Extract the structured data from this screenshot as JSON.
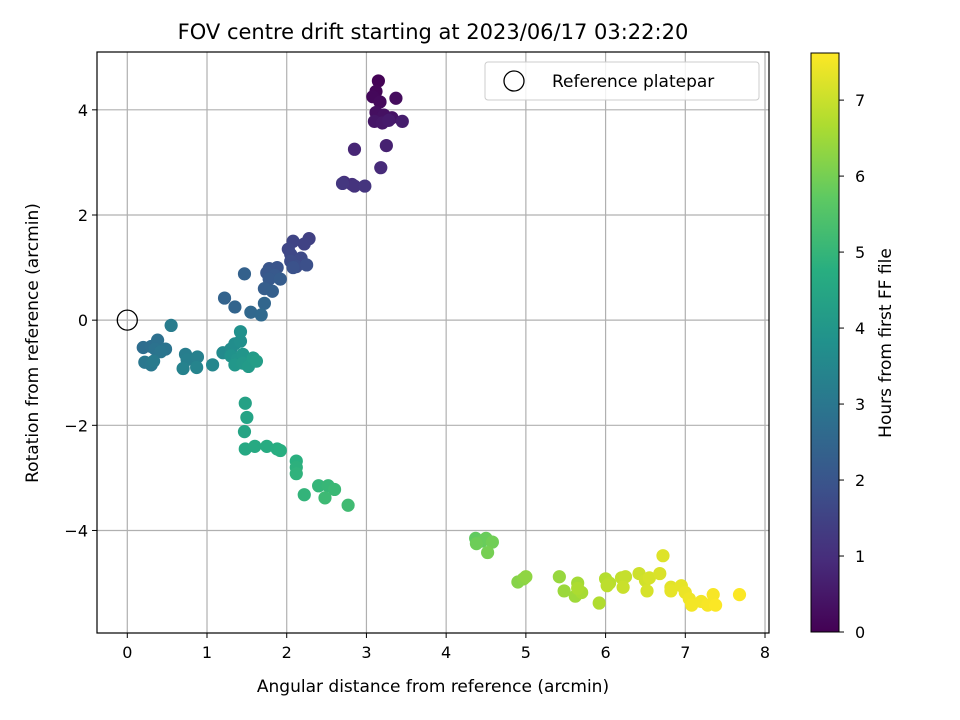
{
  "chart_data": {
    "type": "scatter",
    "title": "FOV centre drift starting at 2023/06/17 03:22:20",
    "xlabel": "Angular distance from reference (arcmin)",
    "ylabel": "Rotation from reference (arcmin)",
    "xlim": [
      -0.38,
      8.05
    ],
    "ylim": [
      -5.95,
      5.1
    ],
    "xticks": [
      0,
      1,
      2,
      3,
      4,
      5,
      6,
      7,
      8
    ],
    "yticks": [
      -4,
      -2,
      0,
      2,
      4
    ],
    "xtick_labels": [
      "0",
      "1",
      "2",
      "3",
      "4",
      "5",
      "6",
      "7",
      "8"
    ],
    "ytick_labels": [
      "−4",
      "−2",
      "0",
      "2",
      "4"
    ],
    "grid": true,
    "colormap": "viridis",
    "colorbar": {
      "label": "Hours from first FF file",
      "range": [
        0,
        7.62
      ],
      "ticks": [
        0,
        1,
        2,
        3,
        4,
        5,
        6,
        7
      ],
      "tick_labels": [
        "0",
        "1",
        "2",
        "3",
        "4",
        "5",
        "6",
        "7"
      ]
    },
    "legend": {
      "position": "top-right",
      "entries": [
        "Reference platepar"
      ]
    },
    "reference_point": {
      "x": 0,
      "y": 0,
      "label": "Reference platepar"
    },
    "points": [
      {
        "x": 3.15,
        "y": 4.55,
        "t": 0.05
      },
      {
        "x": 3.12,
        "y": 4.35,
        "t": 0.1
      },
      {
        "x": 3.08,
        "y": 4.25,
        "t": 0.15
      },
      {
        "x": 3.17,
        "y": 4.15,
        "t": 0.2
      },
      {
        "x": 3.37,
        "y": 4.22,
        "t": 0.25
      },
      {
        "x": 3.12,
        "y": 3.95,
        "t": 0.3
      },
      {
        "x": 3.22,
        "y": 3.9,
        "t": 0.35
      },
      {
        "x": 3.32,
        "y": 3.85,
        "t": 0.4
      },
      {
        "x": 3.1,
        "y": 3.78,
        "t": 0.45
      },
      {
        "x": 3.2,
        "y": 3.75,
        "t": 0.5
      },
      {
        "x": 3.28,
        "y": 3.8,
        "t": 0.55
      },
      {
        "x": 3.45,
        "y": 3.78,
        "t": 0.6
      },
      {
        "x": 3.25,
        "y": 3.32,
        "t": 0.7
      },
      {
        "x": 2.85,
        "y": 3.25,
        "t": 0.8
      },
      {
        "x": 3.18,
        "y": 2.9,
        "t": 0.9
      },
      {
        "x": 2.72,
        "y": 2.62,
        "t": 1.0
      },
      {
        "x": 2.82,
        "y": 2.58,
        "t": 1.05
      },
      {
        "x": 2.85,
        "y": 2.55,
        "t": 1.1
      },
      {
        "x": 2.98,
        "y": 2.55,
        "t": 1.15
      },
      {
        "x": 2.7,
        "y": 2.6,
        "t": 1.2
      },
      {
        "x": 2.28,
        "y": 1.55,
        "t": 1.45
      },
      {
        "x": 2.22,
        "y": 1.45,
        "t": 1.5
      },
      {
        "x": 2.08,
        "y": 1.5,
        "t": 1.55
      },
      {
        "x": 2.02,
        "y": 1.35,
        "t": 1.6
      },
      {
        "x": 2.05,
        "y": 1.25,
        "t": 1.65
      },
      {
        "x": 2.18,
        "y": 1.18,
        "t": 1.7
      },
      {
        "x": 2.05,
        "y": 1.12,
        "t": 1.75
      },
      {
        "x": 2.12,
        "y": 1.02,
        "t": 1.8
      },
      {
        "x": 2.25,
        "y": 1.05,
        "t": 1.85
      },
      {
        "x": 2.08,
        "y": 1.0,
        "t": 1.9
      },
      {
        "x": 1.88,
        "y": 1.0,
        "t": 1.95
      },
      {
        "x": 1.78,
        "y": 0.98,
        "t": 2.0
      },
      {
        "x": 1.75,
        "y": 0.9,
        "t": 2.05
      },
      {
        "x": 1.85,
        "y": 0.85,
        "t": 2.1
      },
      {
        "x": 1.78,
        "y": 0.78,
        "t": 2.15
      },
      {
        "x": 1.92,
        "y": 0.78,
        "t": 2.2
      },
      {
        "x": 1.72,
        "y": 0.6,
        "t": 2.25
      },
      {
        "x": 1.82,
        "y": 0.55,
        "t": 2.3
      },
      {
        "x": 1.47,
        "y": 0.88,
        "t": 2.35
      },
      {
        "x": 1.22,
        "y": 0.42,
        "t": 2.4
      },
      {
        "x": 1.35,
        "y": 0.25,
        "t": 2.45
      },
      {
        "x": 1.72,
        "y": 0.32,
        "t": 2.5
      },
      {
        "x": 1.55,
        "y": 0.15,
        "t": 2.55
      },
      {
        "x": 1.68,
        "y": 0.1,
        "t": 2.6
      },
      {
        "x": 0.2,
        "y": -0.52,
        "t": 2.7
      },
      {
        "x": 0.3,
        "y": -0.5,
        "t": 2.75
      },
      {
        "x": 0.38,
        "y": -0.38,
        "t": 2.8
      },
      {
        "x": 0.35,
        "y": -0.55,
        "t": 2.85
      },
      {
        "x": 0.48,
        "y": -0.55,
        "t": 2.9
      },
      {
        "x": 0.42,
        "y": -0.6,
        "t": 2.95
      },
      {
        "x": 0.22,
        "y": -0.8,
        "t": 3.0
      },
      {
        "x": 0.3,
        "y": -0.85,
        "t": 3.05
      },
      {
        "x": 0.33,
        "y": -0.78,
        "t": 3.1
      },
      {
        "x": 0.55,
        "y": -0.1,
        "t": 3.15
      },
      {
        "x": 0.73,
        "y": -0.65,
        "t": 3.2
      },
      {
        "x": 0.75,
        "y": -0.75,
        "t": 3.25
      },
      {
        "x": 0.88,
        "y": -0.7,
        "t": 3.3
      },
      {
        "x": 0.7,
        "y": -0.92,
        "t": 3.35
      },
      {
        "x": 0.87,
        "y": -0.9,
        "t": 3.4
      },
      {
        "x": 1.07,
        "y": -0.85,
        "t": 3.5
      },
      {
        "x": 1.2,
        "y": -0.62,
        "t": 3.6
      },
      {
        "x": 1.3,
        "y": -0.55,
        "t": 3.65
      },
      {
        "x": 1.35,
        "y": -0.45,
        "t": 3.7
      },
      {
        "x": 1.42,
        "y": -0.4,
        "t": 3.75
      },
      {
        "x": 1.42,
        "y": -0.22,
        "t": 3.8
      },
      {
        "x": 1.3,
        "y": -0.68,
        "t": 3.85
      },
      {
        "x": 1.38,
        "y": -0.75,
        "t": 3.9
      },
      {
        "x": 1.45,
        "y": -0.65,
        "t": 3.95
      },
      {
        "x": 1.35,
        "y": -0.85,
        "t": 4.0
      },
      {
        "x": 1.45,
        "y": -0.82,
        "t": 4.05
      },
      {
        "x": 1.52,
        "y": -0.88,
        "t": 4.1
      },
      {
        "x": 1.58,
        "y": -0.72,
        "t": 4.15
      },
      {
        "x": 1.62,
        "y": -0.78,
        "t": 4.2
      },
      {
        "x": 1.48,
        "y": -1.58,
        "t": 4.35
      },
      {
        "x": 1.5,
        "y": -1.85,
        "t": 4.4
      },
      {
        "x": 1.47,
        "y": -2.12,
        "t": 4.45
      },
      {
        "x": 1.48,
        "y": -2.45,
        "t": 4.55
      },
      {
        "x": 1.6,
        "y": -2.4,
        "t": 4.6
      },
      {
        "x": 1.75,
        "y": -2.4,
        "t": 4.65
      },
      {
        "x": 1.88,
        "y": -2.45,
        "t": 4.7
      },
      {
        "x": 1.92,
        "y": -2.48,
        "t": 4.75
      },
      {
        "x": 2.12,
        "y": -2.68,
        "t": 4.8
      },
      {
        "x": 2.12,
        "y": -2.8,
        "t": 4.85
      },
      {
        "x": 2.12,
        "y": -2.92,
        "t": 4.9
      },
      {
        "x": 2.22,
        "y": -3.32,
        "t": 4.95
      },
      {
        "x": 2.4,
        "y": -3.15,
        "t": 5.0
      },
      {
        "x": 2.52,
        "y": -3.15,
        "t": 5.05
      },
      {
        "x": 2.6,
        "y": -3.22,
        "t": 5.1
      },
      {
        "x": 2.48,
        "y": -3.38,
        "t": 5.15
      },
      {
        "x": 2.77,
        "y": -3.52,
        "t": 5.2
      },
      {
        "x": 4.37,
        "y": -4.15,
        "t": 5.75
      },
      {
        "x": 4.45,
        "y": -4.2,
        "t": 5.8
      },
      {
        "x": 4.5,
        "y": -4.15,
        "t": 5.85
      },
      {
        "x": 4.38,
        "y": -4.25,
        "t": 5.9
      },
      {
        "x": 4.58,
        "y": -4.22,
        "t": 5.95
      },
      {
        "x": 4.52,
        "y": -4.42,
        "t": 6.0
      },
      {
        "x": 4.9,
        "y": -4.98,
        "t": 6.2
      },
      {
        "x": 4.97,
        "y": -4.92,
        "t": 6.25
      },
      {
        "x": 5.0,
        "y": -4.88,
        "t": 6.3
      },
      {
        "x": 5.42,
        "y": -4.88,
        "t": 6.4
      },
      {
        "x": 5.48,
        "y": -5.15,
        "t": 6.45
      },
      {
        "x": 5.62,
        "y": -5.25,
        "t": 6.5
      },
      {
        "x": 5.65,
        "y": -5.0,
        "t": 6.55
      },
      {
        "x": 5.7,
        "y": -5.18,
        "t": 6.6
      },
      {
        "x": 5.65,
        "y": -5.1,
        "t": 6.65
      },
      {
        "x": 5.92,
        "y": -5.38,
        "t": 6.7
      },
      {
        "x": 6.0,
        "y": -4.92,
        "t": 6.75
      },
      {
        "x": 6.05,
        "y": -5.0,
        "t": 6.8
      },
      {
        "x": 6.02,
        "y": -5.05,
        "t": 6.85
      },
      {
        "x": 6.2,
        "y": -4.9,
        "t": 6.9
      },
      {
        "x": 6.25,
        "y": -4.88,
        "t": 6.95
      },
      {
        "x": 6.22,
        "y": -5.08,
        "t": 7.0
      },
      {
        "x": 6.42,
        "y": -4.82,
        "t": 7.05
      },
      {
        "x": 6.5,
        "y": -4.95,
        "t": 7.1
      },
      {
        "x": 6.52,
        "y": -5.15,
        "t": 7.15
      },
      {
        "x": 6.55,
        "y": -4.9,
        "t": 7.15
      },
      {
        "x": 6.68,
        "y": -4.82,
        "t": 7.2
      },
      {
        "x": 6.72,
        "y": -4.48,
        "t": 7.25
      },
      {
        "x": 6.82,
        "y": -5.08,
        "t": 7.3
      },
      {
        "x": 6.95,
        "y": -5.05,
        "t": 7.35
      },
      {
        "x": 6.82,
        "y": -5.15,
        "t": 7.35
      },
      {
        "x": 7.0,
        "y": -5.18,
        "t": 7.4
      },
      {
        "x": 7.05,
        "y": -5.3,
        "t": 7.45
      },
      {
        "x": 7.08,
        "y": -5.42,
        "t": 7.5
      },
      {
        "x": 7.2,
        "y": -5.35,
        "t": 7.5
      },
      {
        "x": 7.28,
        "y": -5.42,
        "t": 7.55
      },
      {
        "x": 7.35,
        "y": -5.22,
        "t": 7.55
      },
      {
        "x": 7.38,
        "y": -5.42,
        "t": 7.6
      },
      {
        "x": 7.68,
        "y": -5.22,
        "t": 7.6
      }
    ]
  }
}
